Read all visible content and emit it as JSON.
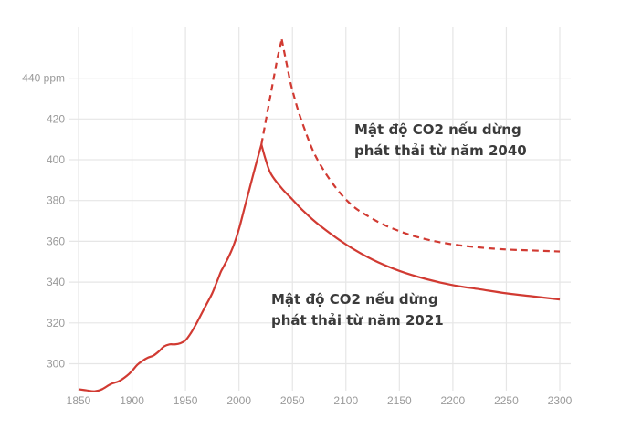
{
  "chart_data": {
    "type": "line",
    "title": "",
    "xlabel": "",
    "ylabel": "",
    "xlim": [
      1850,
      2300
    ],
    "ylim": [
      286,
      460
    ],
    "grid": true,
    "x_ticks": [
      1850,
      1900,
      1950,
      2000,
      2050,
      2100,
      2150,
      2200,
      2250,
      2300
    ],
    "x_tick_labels": [
      "1850",
      "1900",
      "1950",
      "2000",
      "2050",
      "2100",
      "2150",
      "2200",
      "2250",
      "2300"
    ],
    "y_ticks": [
      300,
      320,
      340,
      360,
      380,
      400,
      420,
      440
    ],
    "y_tick_labels": [
      "300",
      "320",
      "340",
      "360",
      "380",
      "400",
      "420",
      "440 ppm"
    ],
    "color": "#d13a32",
    "series": [
      {
        "name": "Mật độ CO2 nếu dừng phát thải từ năm 2021",
        "style": "solid",
        "x": [
          1850,
          1857,
          1865,
          1872,
          1880,
          1888,
          1895,
          1900,
          1905,
          1910,
          1915,
          1920,
          1925,
          1930,
          1935,
          1940,
          1945,
          1950,
          1955,
          1960,
          1965,
          1970,
          1975,
          1980,
          1983,
          1985,
          1990,
          1995,
          2000,
          2005,
          2010,
          2015,
          2021,
          2025,
          2030,
          2040,
          2050,
          2060,
          2075,
          2100,
          2125,
          2150,
          2175,
          2200,
          2225,
          2250,
          2275,
          2300
        ],
        "y": [
          287.5,
          287,
          286.5,
          287.5,
          290,
          291.5,
          294,
          296.5,
          299.5,
          301.5,
          303,
          304,
          306,
          308.5,
          309.5,
          309.5,
          310,
          311.5,
          315,
          319.5,
          324.5,
          329.5,
          334.5,
          341,
          345,
          347,
          352,
          358,
          366,
          376,
          386,
          396,
          407.5,
          400,
          393,
          386,
          380.5,
          375,
          368,
          358.5,
          351,
          345.5,
          341.5,
          338.5,
          336.5,
          334.5,
          333,
          331.5
        ]
      },
      {
        "name": "Mật độ CO2 nếu dừng phát thải từ năm 2040",
        "style": "dashed",
        "x": [
          2021,
          2030,
          2036,
          2040,
          2045,
          2050,
          2060,
          2075,
          2100,
          2125,
          2150,
          2175,
          2200,
          2225,
          2250,
          2275,
          2300
        ],
        "y": [
          407.5,
          433,
          450,
          459,
          446,
          434,
          417,
          398.5,
          380.5,
          371,
          365,
          361,
          358.5,
          357,
          356,
          355.5,
          355
        ]
      }
    ],
    "annotations": [
      {
        "line1": "Mật độ CO2 nếu dừng",
        "line2": "phát thải từ năm 2040",
        "series": 1
      },
      {
        "line1": "Mật độ CO2 nếu dừng",
        "line2": "phát thải từ năm 2021",
        "series": 0
      }
    ]
  }
}
